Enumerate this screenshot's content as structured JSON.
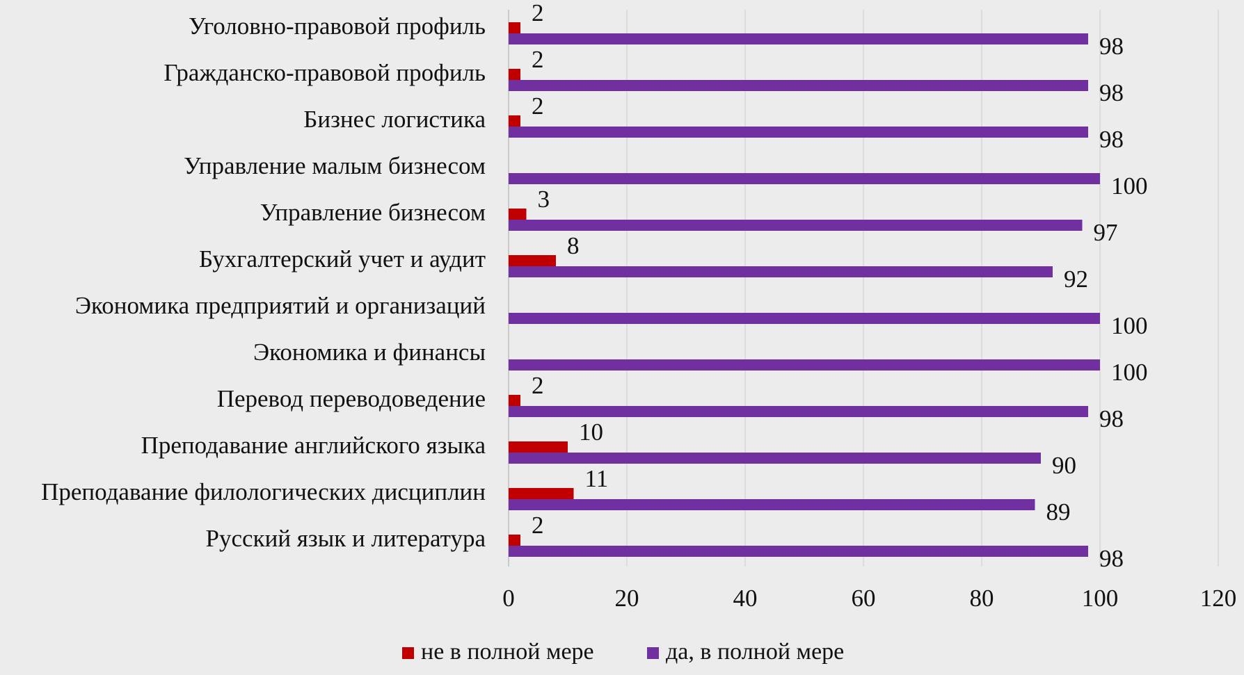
{
  "chart_data": {
    "type": "bar",
    "orientation": "horizontal",
    "categories": [
      "Уголовно-правовой профиль",
      "Гражданско-правовой профиль",
      "Бизнес логистика",
      "Управление малым бизнесом",
      "Управление бизнесом",
      "Бухгалтерский учет и аудит",
      "Экономика предприятий и организаций",
      "Экономика и финансы",
      "Перевод переводоведение",
      "Преподавание английского языка",
      "Преподавание филологических дисциплин",
      "Русский язык и литература"
    ],
    "series": [
      {
        "name": "не в полной мере",
        "color": "#c00000",
        "values": [
          2,
          2,
          2,
          null,
          3,
          8,
          null,
          null,
          2,
          10,
          11,
          2
        ]
      },
      {
        "name": "да, в полной мере",
        "color": "#7030a0",
        "values": [
          98,
          98,
          98,
          100,
          97,
          92,
          100,
          100,
          98,
          90,
          89,
          98
        ]
      }
    ],
    "xlim": [
      0,
      120
    ],
    "xticks": [
      0,
      20,
      40,
      60,
      80,
      100,
      120
    ],
    "grid": true,
    "legend": "bottom",
    "title": "",
    "xlabel": "",
    "ylabel": ""
  }
}
